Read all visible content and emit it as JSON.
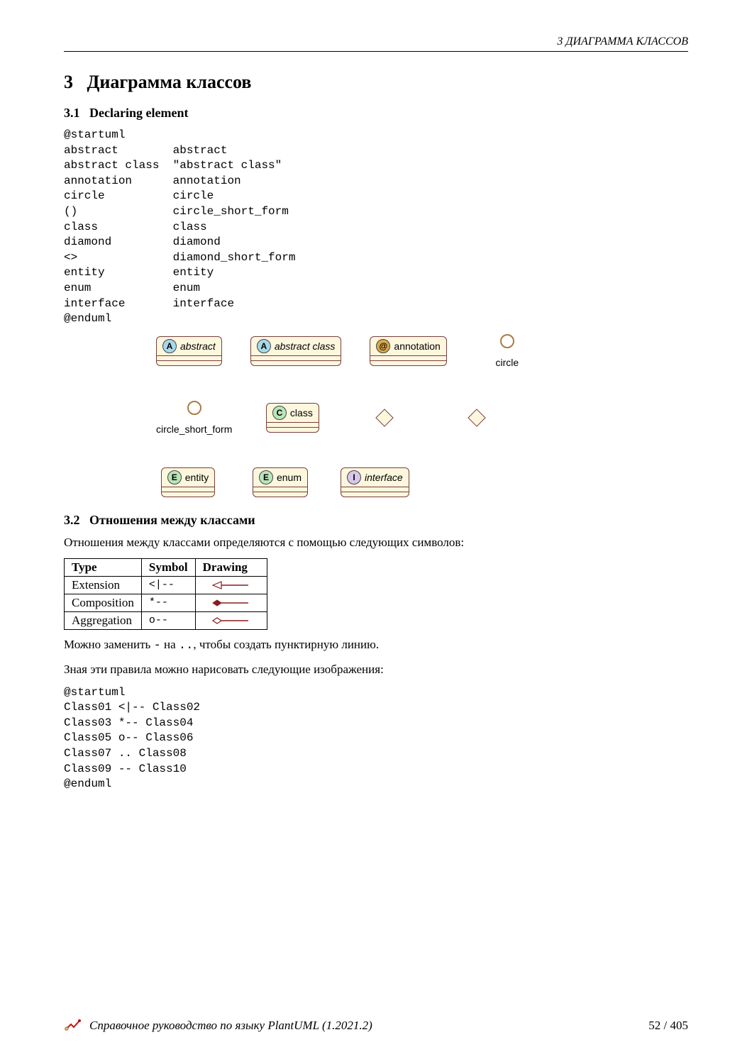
{
  "header": {
    "right": "3   ДИАГРАММА КЛАССОВ"
  },
  "section": {
    "num": "3",
    "title": "Диаграмма классов"
  },
  "sub1": {
    "num": "3.1",
    "title": "Declaring element"
  },
  "code1": "@startuml\nabstract        abstract\nabstract class  \"abstract class\"\nannotation      annotation\ncircle          circle\n()              circle_short_form\nclass           class\ndiamond         diamond\n<>              diamond_short_form\nentity          entity\nenum            enum\ninterface       interface\n@enduml",
  "uml": {
    "colors": {
      "box_bg": "#fdf7de",
      "box_border": "#7a3e3e",
      "badge_A_bg": "#a8d8e8",
      "badge_at_bg": "#d9a84a",
      "badge_C_bg": "#b9e6b9",
      "badge_E_bg": "#b9e6b9",
      "badge_I_bg": "#d9c7ea",
      "circle_border": "#a77d44"
    },
    "row1": [
      {
        "type": "box",
        "badge": "A",
        "badge_bg": "#a8d8e8",
        "label": "abstract",
        "italic": true
      },
      {
        "type": "box",
        "badge": "A",
        "badge_bg": "#a8d8e8",
        "label": "abstract class",
        "italic": true
      },
      {
        "type": "box",
        "badge": "@",
        "badge_bg": "#d9a84a",
        "label": "annotation",
        "italic": false
      },
      {
        "type": "circle",
        "label": "circle"
      }
    ],
    "row2": [
      {
        "type": "circle",
        "label": "circle_short_form"
      },
      {
        "type": "box",
        "badge": "C",
        "badge_bg": "#b9e6b9",
        "label": "class",
        "italic": false
      },
      {
        "type": "diamond"
      },
      {
        "type": "diamond"
      }
    ],
    "row3": [
      {
        "type": "box",
        "badge": "E",
        "badge_bg": "#b9e6b9",
        "label": "entity",
        "italic": false
      },
      {
        "type": "box",
        "badge": "E",
        "badge_bg": "#b9e6b9",
        "label": "enum",
        "italic": false
      },
      {
        "type": "box",
        "badge": "I",
        "badge_bg": "#d9c7ea",
        "label": "interface",
        "italic": true
      }
    ]
  },
  "sub2": {
    "num": "3.2",
    "title": "Отношения между классами"
  },
  "para1": "Отношения между классами определяются с помощью следующих символов:",
  "reltable": {
    "columns": [
      "Type",
      "Symbol",
      "Drawing"
    ],
    "rows": [
      {
        "type": "Extension",
        "symbol": "<|--",
        "drawing": "extension"
      },
      {
        "type": "Composition",
        "symbol": "*--",
        "drawing": "composition"
      },
      {
        "type": "Aggregation",
        "symbol": "o--",
        "drawing": "aggregation"
      }
    ],
    "draw_colors": {
      "line": "#8a1c1c",
      "fill_composition": "#8a1c1c",
      "hollow": "#ffffff"
    }
  },
  "para2_pre": "Можно заменить ",
  "para2_code1": "-",
  "para2_mid": " на ",
  "para2_code2": "..",
  "para2_post": ", чтобы создать пунктирную линию.",
  "para3": "Зная эти правила можно нарисовать следующие изображения:",
  "code2": "@startuml\nClass01 <|-- Class02\nClass03 *-- Class04\nClass05 o-- Class06\nClass07 .. Class08\nClass09 -- Class10\n@enduml",
  "footer": {
    "title": "Справочное руководство по языку PlantUML (1.2021.2)",
    "page": "52 / 405"
  }
}
